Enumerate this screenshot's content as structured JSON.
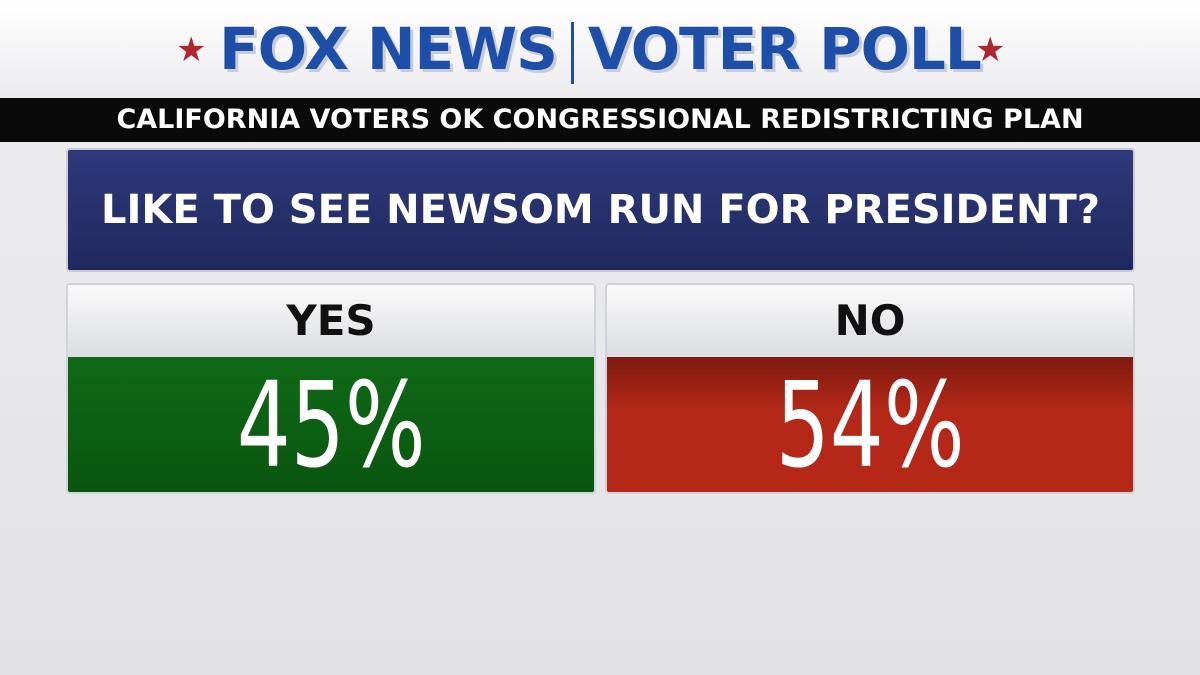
{
  "header": {
    "brand": "FOX NEWS",
    "title": "VOTER POLL",
    "subtitle": "CALIFORNIA VOTERS OK CONGRESSIONAL REDISTRICTING PLAN"
  },
  "question": "LIKE TO SEE NEWSOM RUN FOR PRESIDENT?",
  "options": [
    {
      "label": "YES",
      "value": "45%"
    },
    {
      "label": "NO",
      "value": "54%"
    }
  ]
}
